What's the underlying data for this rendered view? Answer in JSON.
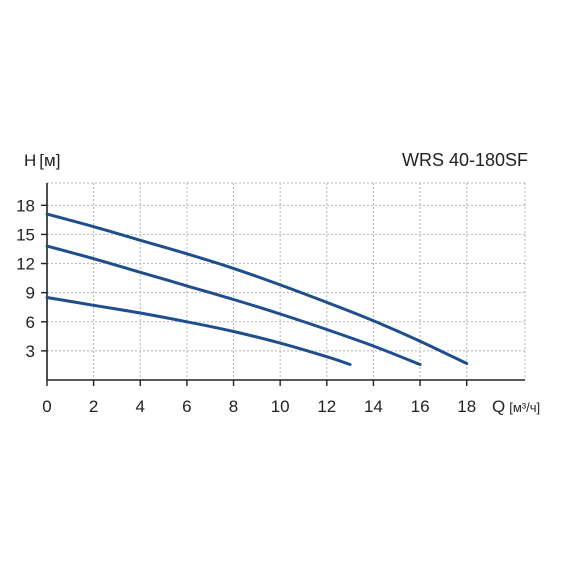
{
  "chart_data": {
    "type": "line",
    "title": "WRS 40-180SF",
    "ylabel": "H",
    "ylabel_unit": "[м]",
    "xlabel": "Q",
    "xlabel_unit": "[м³/ч]",
    "xlim": [
      0,
      20.5
    ],
    "ylim": [
      0,
      20.3
    ],
    "x_ticks": [
      0,
      2,
      4,
      6,
      8,
      10,
      12,
      14,
      16,
      18
    ],
    "y_ticks": [
      3,
      6,
      9,
      12,
      15,
      18
    ],
    "grid": true,
    "line_color": "#1f4e8c",
    "series": [
      {
        "x": [
          0,
          2,
          4,
          6,
          8,
          10,
          12,
          14,
          16,
          18
        ],
        "y": [
          17.1,
          15.8,
          14.4,
          13.0,
          11.5,
          9.8,
          8.0,
          6.1,
          4.0,
          1.7
        ]
      },
      {
        "x": [
          0,
          2,
          4,
          6,
          8,
          10,
          12,
          14,
          16
        ],
        "y": [
          13.8,
          12.5,
          11.1,
          9.7,
          8.3,
          6.8,
          5.2,
          3.5,
          1.6
        ]
      },
      {
        "x": [
          0,
          2,
          4,
          6,
          8,
          10,
          12,
          13
        ],
        "y": [
          8.5,
          7.7,
          6.9,
          6.0,
          5.0,
          3.8,
          2.4,
          1.6
        ]
      }
    ]
  }
}
